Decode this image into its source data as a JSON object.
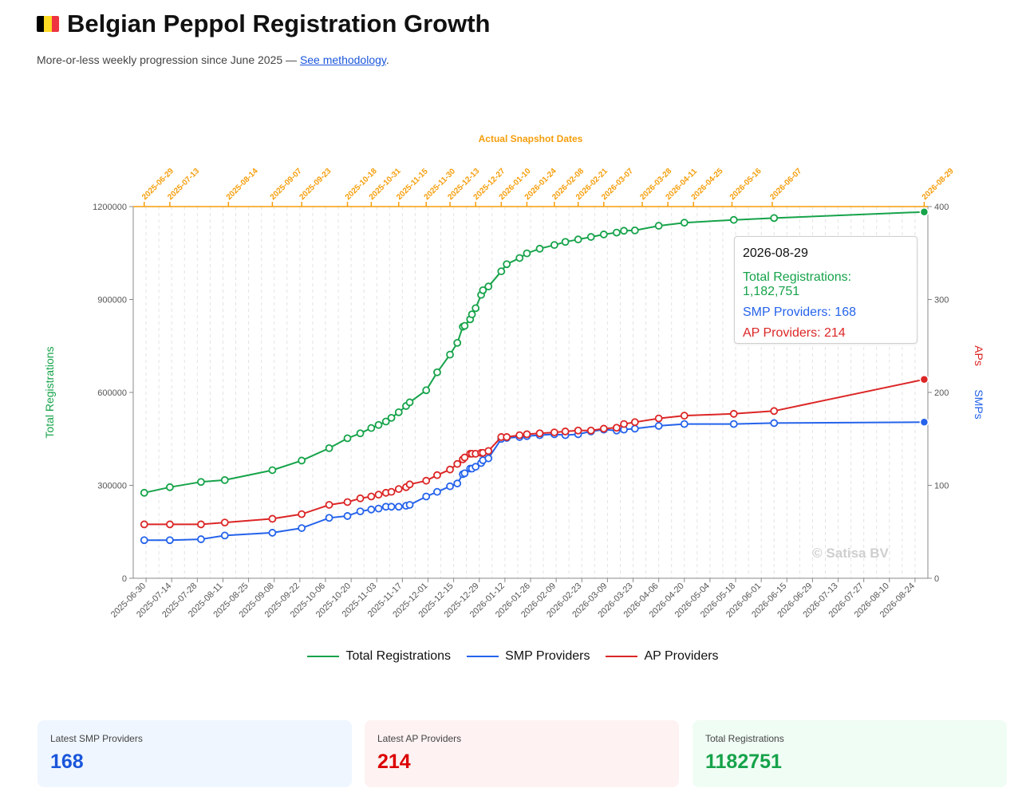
{
  "header": {
    "title": "Belgian Peppol Registration Growth",
    "subtitle_text": "More-or-less weekly progression since June 2025 — ",
    "methodology_link": "See methodology",
    "subtitle_end": "."
  },
  "colors": {
    "total": "#16a34a",
    "smp": "#2563eb",
    "ap": "#dc2626",
    "snapshot": "#f59e0b",
    "flag": [
      "#000000",
      "#fdda24",
      "#ef3340"
    ]
  },
  "tooltip": {
    "date": "2026-08-29",
    "total_label": "Total Registrations: 1,182,751",
    "smp_label": "SMP Providers: 168",
    "ap_label": "AP Providers: 214"
  },
  "legend": [
    {
      "label": "Total Registrations",
      "color": "#16a34a"
    },
    {
      "label": "SMP Providers",
      "color": "#2563eb"
    },
    {
      "label": "AP Providers",
      "color": "#dc2626"
    }
  ],
  "cards": [
    {
      "label": "Latest SMP Providers",
      "value": "168",
      "color": "#1a56db",
      "bg": "#eff6ff"
    },
    {
      "label": "Latest AP Providers",
      "value": "214",
      "color": "#dc0000",
      "bg": "#fef2f2"
    },
    {
      "label": "Total Registrations",
      "value": "1182751",
      "color": "#16a34a",
      "bg": "#f0fdf4"
    }
  ],
  "chart_data": {
    "type": "line",
    "x_start": "2025-06-23",
    "x_end": "2026-08-31",
    "x_ticks": [
      "2025-06-30",
      "2025-07-14",
      "2025-07-28",
      "2025-08-11",
      "2025-08-25",
      "2025-09-08",
      "2025-09-22",
      "2025-10-06",
      "2025-10-20",
      "2025-11-03",
      "2025-11-17",
      "2025-12-01",
      "2025-12-15",
      "2025-12-29",
      "2026-01-12",
      "2026-01-26",
      "2026-02-09",
      "2026-02-23",
      "2026-03-09",
      "2026-03-23",
      "2026-04-06",
      "2026-04-20",
      "2026-05-04",
      "2026-05-18",
      "2026-06-01",
      "2026-06-15",
      "2026-06-29",
      "2026-07-13",
      "2026-07-27",
      "2026-08-10",
      "2026-08-24"
    ],
    "y_left": {
      "label": "Total Registrations",
      "min": 0,
      "max": 1200000,
      "ticks": [
        0,
        300000,
        600000,
        900000,
        1200000
      ]
    },
    "y_right": {
      "label_ap": "APs",
      "label_smp": "SMPs",
      "min": 0,
      "max": 400,
      "ticks": [
        0,
        100,
        200,
        300,
        400
      ]
    },
    "snapshot_title": "Actual Snapshot Dates",
    "snapshot_labels": [
      "2025-06-29",
      "2025-07-13",
      "2025-08-14",
      "2025-09-07",
      "2025-09-23",
      "2025-10-18",
      "2025-10-31",
      "2025-11-15",
      "2025-11-30",
      "2025-12-13",
      "2025-12-27",
      "2026-01-10",
      "2026-01-24",
      "2026-02-08",
      "2026-02-21",
      "2026-03-07",
      "2026-03-28",
      "2026-04-11",
      "2026-04-25",
      "2026-05-16",
      "2026-06-07",
      "2026-08-29"
    ],
    "watermark": "© Satisa BV",
    "dates": [
      "2025-06-29",
      "2025-07-13",
      "2025-07-30",
      "2025-08-12",
      "2025-09-07",
      "2025-09-23",
      "2025-10-08",
      "2025-10-18",
      "2025-10-25",
      "2025-10-31",
      "2025-11-04",
      "2025-11-08",
      "2025-11-11",
      "2025-11-15",
      "2025-11-19",
      "2025-11-21",
      "2025-11-30",
      "2025-12-06",
      "2025-12-13",
      "2025-12-17",
      "2025-12-20",
      "2025-12-21",
      "2025-12-24",
      "2025-12-25",
      "2025-12-27",
      "2025-12-30",
      "2025-12-31",
      "2026-01-03",
      "2026-01-10",
      "2026-01-13",
      "2026-01-20",
      "2026-01-24",
      "2026-01-31",
      "2026-02-08",
      "2026-02-14",
      "2026-02-21",
      "2026-02-28",
      "2026-03-07",
      "2026-03-14",
      "2026-03-18",
      "2026-03-24",
      "2026-04-06",
      "2026-04-20",
      "2026-05-17",
      "2026-06-08",
      "2026-08-29"
    ],
    "series": [
      {
        "name": "Total Registrations",
        "axis": "left",
        "values": [
          276000,
          294000,
          311000,
          317000,
          349000,
          380000,
          420000,
          452000,
          468000,
          485000,
          495000,
          506000,
          518000,
          536000,
          556000,
          568000,
          607000,
          665000,
          722000,
          760000,
          812000,
          815000,
          836000,
          852000,
          872000,
          915000,
          930000,
          942000,
          991000,
          1014000,
          1034000,
          1049000,
          1064000,
          1076000,
          1086000,
          1094000,
          1102000,
          1110000,
          1116000,
          1122000,
          1123000,
          1138000,
          1148000,
          1157000,
          1163000,
          1182751
        ]
      },
      {
        "name": "SMP Providers",
        "axis": "right",
        "values": [
          41,
          41,
          42,
          46,
          49,
          54,
          65,
          67,
          72,
          74,
          75,
          77,
          77,
          77,
          78,
          79,
          88,
          93,
          99,
          102,
          112,
          113,
          118,
          118,
          120,
          124,
          127,
          129,
          150,
          151,
          152,
          153,
          154,
          155,
          154,
          155,
          158,
          160,
          159,
          160,
          161,
          164,
          166,
          166,
          167,
          168
        ]
      },
      {
        "name": "AP Providers",
        "axis": "right",
        "values": [
          58,
          58,
          58,
          60,
          64,
          69,
          79,
          82,
          86,
          88,
          90,
          92,
          93,
          96,
          98,
          101,
          105,
          111,
          117,
          123,
          128,
          130,
          134,
          134,
          134,
          135,
          135,
          137,
          152,
          152,
          154,
          155,
          156,
          157,
          158,
          159,
          159,
          161,
          162,
          166,
          168,
          172,
          175,
          177,
          180,
          214
        ]
      }
    ]
  }
}
